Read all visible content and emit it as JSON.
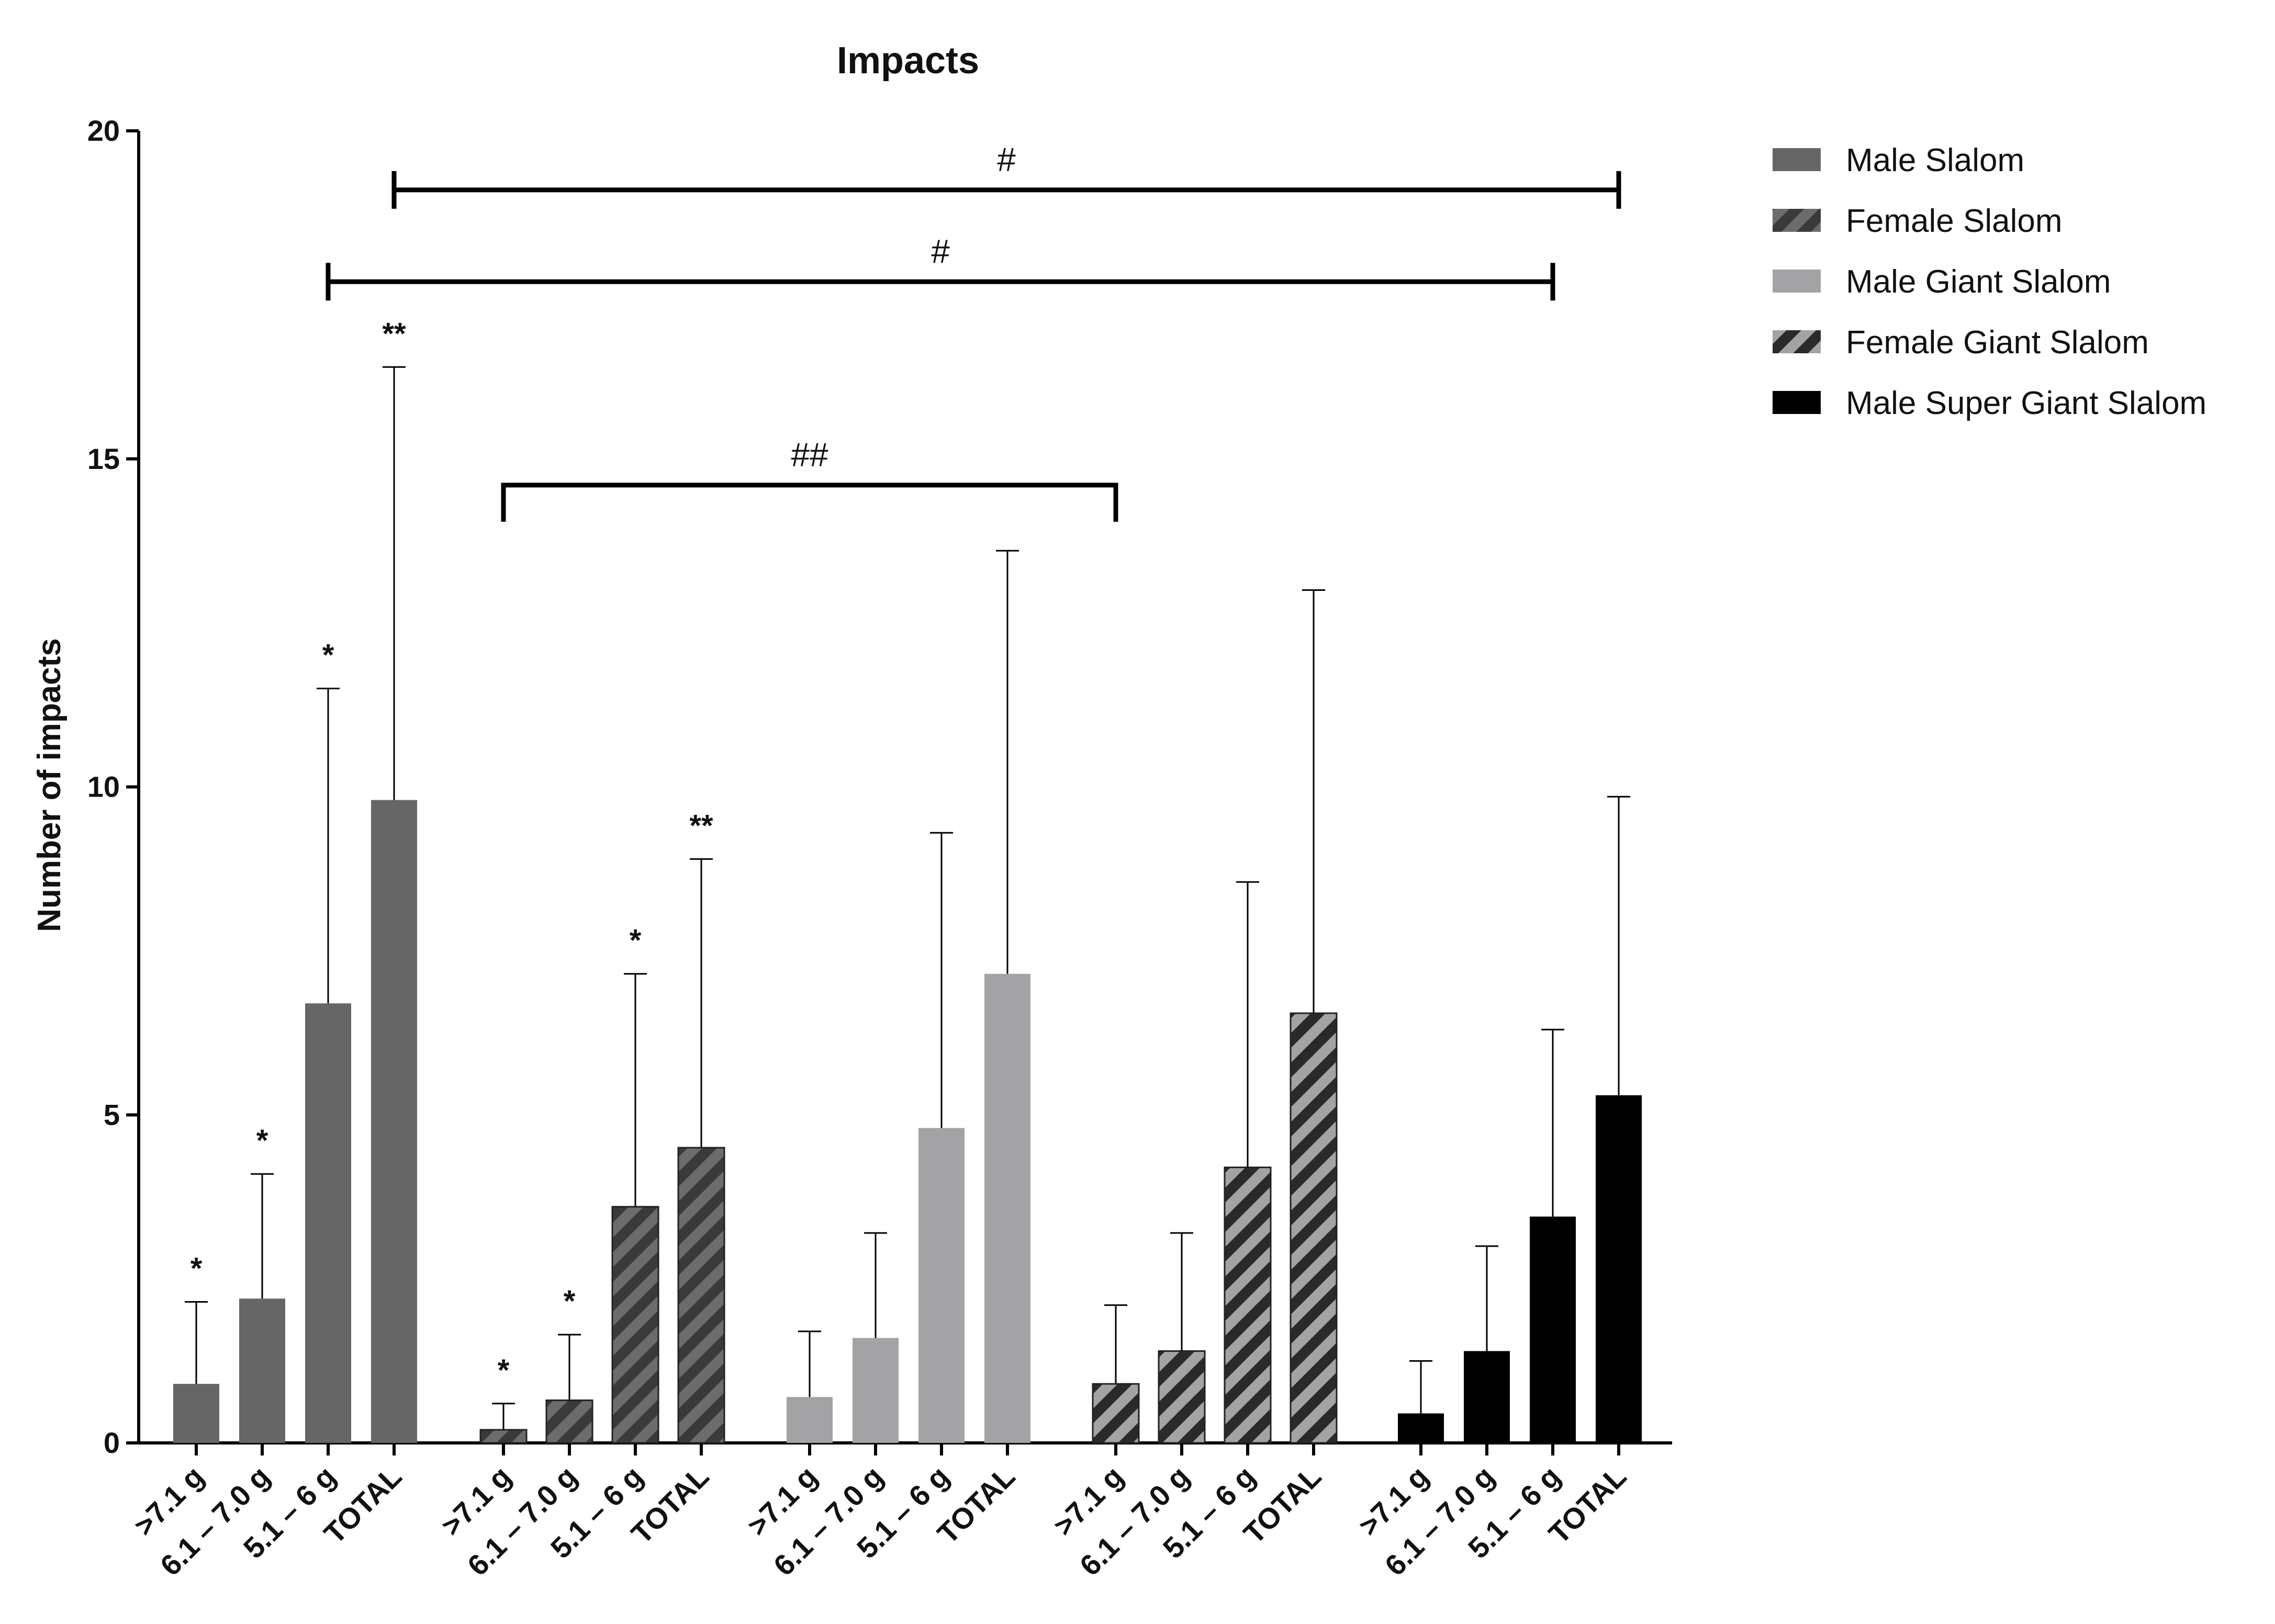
{
  "chart_data": {
    "type": "bar",
    "title": "Impacts",
    "xlabel": "",
    "ylabel": "Number of impacts",
    "ylim": [
      0,
      20
    ],
    "yticks": [
      0,
      5,
      10,
      15,
      20
    ],
    "grid": false,
    "legend_position": "top-right",
    "categories": [
      ">7.1 g",
      "6.1 – 7.0 g",
      "5.1 – 6 g",
      "TOTAL"
    ],
    "series": [
      {
        "name": "Male Slalom",
        "color": "#666666",
        "pattern": "solid",
        "values": [
          0.9,
          2.2,
          6.7,
          9.8
        ],
        "error": [
          1.25,
          1.9,
          4.8,
          6.6
        ],
        "annotations": [
          "*",
          "*",
          "*",
          "**"
        ]
      },
      {
        "name": "Female Slalom",
        "color": "#555555",
        "pattern": "hatched",
        "values": [
          0.2,
          0.65,
          3.6,
          4.5
        ],
        "error": [
          0.4,
          1.0,
          3.55,
          4.4
        ],
        "annotations": [
          "*",
          "*",
          "*",
          "**"
        ]
      },
      {
        "name": "Male Giant Slalom",
        "color": "#a3a3a6",
        "pattern": "solid",
        "values": [
          0.7,
          1.6,
          4.8,
          7.15
        ],
        "error": [
          1.0,
          1.6,
          4.5,
          6.45
        ],
        "annotations": [
          "",
          "",
          "",
          ""
        ]
      },
      {
        "name": "Female Giant Slalom",
        "color": "#a3a3a6",
        "pattern": "hatched",
        "values": [
          0.9,
          1.4,
          4.2,
          6.55
        ],
        "error": [
          1.2,
          1.8,
          4.35,
          6.45
        ],
        "annotations": [
          "",
          "",
          "",
          ""
        ]
      },
      {
        "name": "Male Super Giant Slalom",
        "color": "#000000",
        "pattern": "solid",
        "values": [
          0.45,
          1.4,
          3.45,
          5.3
        ],
        "error": [
          0.8,
          1.6,
          2.85,
          4.55
        ],
        "annotations": [
          "",
          "",
          "",
          ""
        ]
      }
    ],
    "significance_brackets": [
      {
        "label": "#",
        "from": {
          "series": 0,
          "category": 3
        },
        "to": {
          "series": 4,
          "category": 3
        },
        "y": 19.1
      },
      {
        "label": "#",
        "from": {
          "series": 0,
          "category": 2
        },
        "to": {
          "series": 4,
          "category": 2
        },
        "y": 17.7
      },
      {
        "label": "##",
        "from": {
          "series": 1,
          "category": 0
        },
        "to": {
          "series": 3,
          "category": 0
        },
        "y": 14.6
      }
    ]
  }
}
